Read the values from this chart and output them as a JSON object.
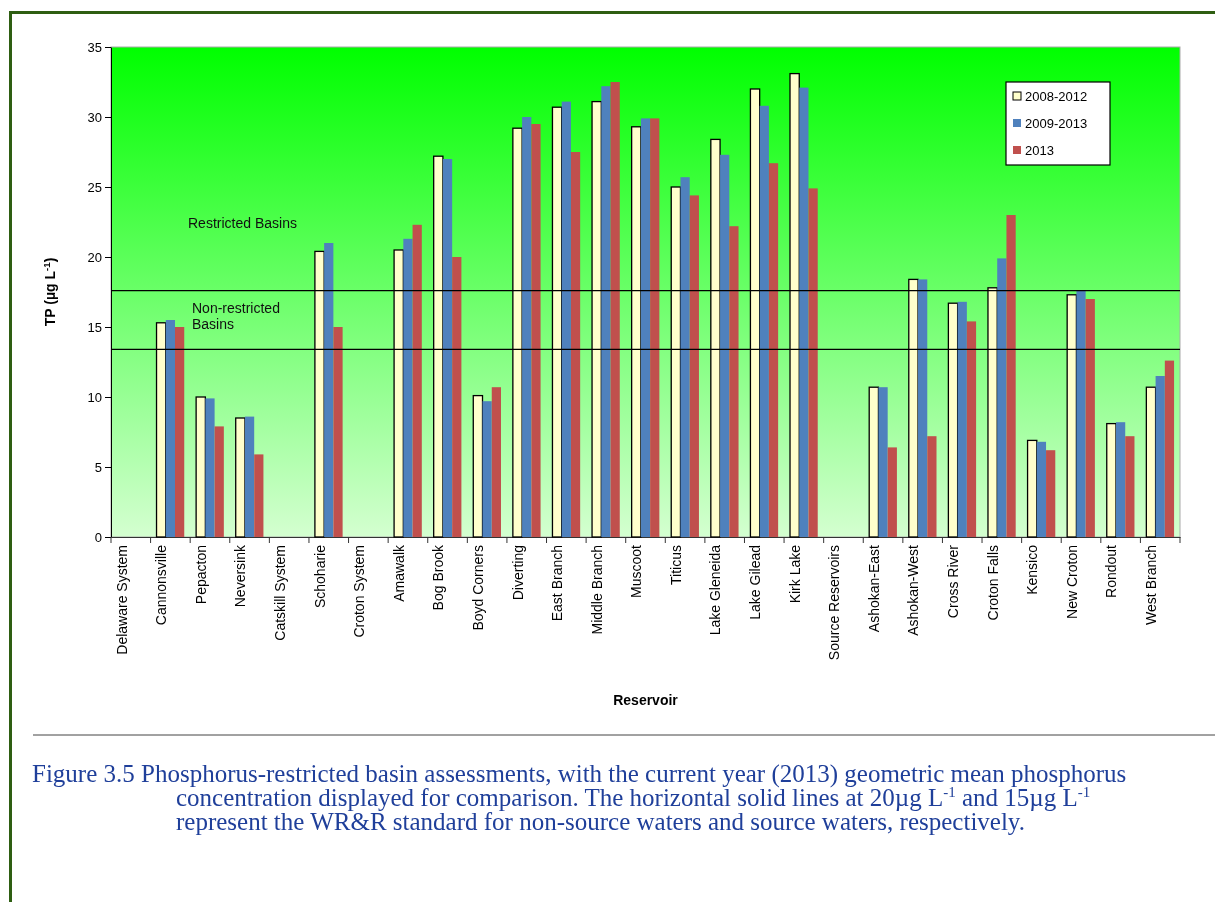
{
  "chart_data": {
    "type": "bar",
    "xlabel": "Reservoir",
    "ylabel": "TP (µg L$^{-1}$)",
    "categories": [
      "Delaware System",
      "Cannonsville",
      "Pepacton",
      "Neversink",
      "Catskill System",
      "Schoharie",
      "Croton System",
      "Amawalk",
      "Bog Brook",
      "Boyd Corners",
      "Diverting",
      "East Branch",
      "Middle Branch",
      "Muscoot",
      "Titicus",
      "Lake Gleneida",
      "Lake Gilead",
      "Kirk Lake",
      "Source Reservoirs",
      "Ashokan-East",
      "Ashokan-West",
      "Cross River",
      "Croton Falls",
      "Kensico",
      "New Croton",
      "Rondout",
      "West Branch"
    ],
    "series": [
      {
        "name": "2008-2012",
        "color": "#ffffcc",
        "values": [
          null,
          15.3,
          10.0,
          8.5,
          null,
          20.4,
          null,
          20.5,
          27.2,
          10.1,
          29.2,
          30.7,
          31.1,
          29.3,
          25.0,
          28.4,
          32.0,
          33.1,
          null,
          10.7,
          18.4,
          16.7,
          17.8,
          6.9,
          17.3,
          8.1,
          10.7
        ]
      },
      {
        "name": "2009-2013",
        "color": "#4f81bd",
        "values": [
          null,
          15.5,
          9.9,
          8.6,
          null,
          21.0,
          null,
          21.3,
          27.0,
          9.7,
          30.0,
          31.1,
          32.2,
          29.9,
          25.7,
          27.3,
          30.8,
          32.1,
          null,
          10.7,
          18.4,
          16.8,
          19.9,
          6.8,
          17.6,
          8.2,
          11.5
        ]
      },
      {
        "name": "2013",
        "color": "#c0504d",
        "values": [
          null,
          15.0,
          7.9,
          5.9,
          null,
          15.0,
          null,
          22.3,
          20.0,
          10.7,
          29.5,
          27.5,
          32.5,
          29.9,
          24.4,
          22.2,
          26.7,
          24.9,
          null,
          6.4,
          7.2,
          15.4,
          23.0,
          6.2,
          17.0,
          7.2,
          12.6
        ]
      }
    ],
    "ylim": [
      0,
      35
    ],
    "yticks": [
      0,
      5,
      10,
      15,
      20,
      25,
      30,
      35
    ],
    "ref_lines": [
      {
        "axis": "y",
        "value": 17.6,
        "color": "#000000",
        "line_style": "solid"
      },
      {
        "axis": "y",
        "value": 13.4,
        "color": "#000000",
        "line_style": "solid"
      }
    ],
    "legend": "top right",
    "annotations": [
      "Restricted Basins",
      "Non-restricted\nBasins",
      "Figure 3.5  Phosphorus-restricted basin assessments, with the current year (2013) geometric mean phosphorus concentration displayed for comparison. The horizontal solid lines at 20µg L$^{-1}$ and 15µg L$^{-1}$ represent the WR&R standard for non-source waters and source waters, respectively."
    ]
  }
}
